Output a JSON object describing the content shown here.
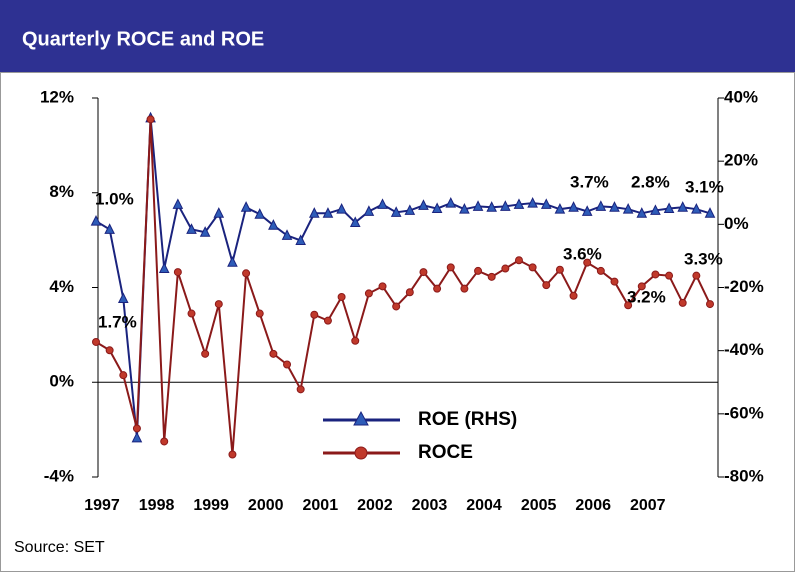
{
  "chart_data": {
    "type": "line",
    "title": "Quarterly ROCE and ROE",
    "source": "Source: SET",
    "categories": [
      "1997",
      null,
      null,
      null,
      "1998",
      null,
      null,
      null,
      "1999",
      null,
      null,
      null,
      "2000",
      null,
      null,
      null,
      "2001",
      null,
      null,
      null,
      "2002",
      null,
      null,
      null,
      "2003",
      null,
      null,
      null,
      "2004",
      null,
      null,
      null,
      "2005",
      null,
      null,
      null,
      "2006",
      null,
      null,
      null,
      "2007",
      null,
      null,
      null,
      null,
      null
    ],
    "ylim": [
      -4,
      12
    ],
    "yticks": [
      {
        "value": -4,
        "label": "-4%"
      },
      {
        "value": 0,
        "label": "0%"
      },
      {
        "value": 4,
        "label": "4%"
      },
      {
        "value": 8,
        "label": "8%"
      },
      {
        "value": 12,
        "label": "12%"
      }
    ],
    "y2lim": [
      -80,
      40
    ],
    "y2ticks": [
      {
        "value": -80,
        "label": "-80%"
      },
      {
        "value": -60,
        "label": "-60%"
      },
      {
        "value": -40,
        "label": "-40%"
      },
      {
        "value": -20,
        "label": "-20%"
      },
      {
        "value": 0,
        "label": "0%"
      },
      {
        "value": 20,
        "label": "20%"
      },
      {
        "value": 40,
        "label": "40%"
      }
    ],
    "series": [
      {
        "name": "ROE (RHS)",
        "color": "#1a237e",
        "marker": "triangle",
        "axis": "y2",
        "values": [
          1.0,
          -1.6,
          -23.5,
          -67.6,
          33.7,
          -14,
          6.3,
          -1.6,
          -2.5,
          3.5,
          -12,
          5.4,
          3.2,
          -0.3,
          -3.5,
          -5.1,
          3.5,
          3.5,
          4.8,
          0.6,
          4.1,
          6.3,
          3.8,
          4.4,
          6,
          5,
          6.7,
          4.8,
          5.7,
          5.4,
          5.7,
          6.3,
          6.7,
          6.3,
          4.8,
          5.4,
          4.1,
          5.7,
          5.4,
          4.8,
          3.5,
          4.4,
          5,
          5.4,
          4.8,
          3.5
        ]
      },
      {
        "name": "ROCE",
        "color": "#8b1a1a",
        "marker": "circle",
        "values": [
          1.7,
          1.35,
          0.3,
          -1.95,
          11.1,
          -2.5,
          4.65,
          2.9,
          1.2,
          3.3,
          -3.05,
          4.6,
          2.9,
          1.2,
          0.75,
          -0.3,
          2.85,
          2.6,
          3.6,
          1.75,
          3.75,
          4.05,
          3.2,
          3.8,
          4.65,
          3.95,
          4.85,
          3.95,
          4.7,
          4.45,
          4.8,
          5.15,
          4.85,
          4.1,
          4.75,
          3.65,
          5.05,
          4.7,
          4.25,
          3.25,
          4.05,
          4.55,
          4.5,
          3.35,
          4.5,
          3.3
        ]
      }
    ],
    "annotations": [
      "1.0%",
      "1.7%",
      "3.7%",
      "2.8%",
      "3.1%",
      "3.6%",
      "3.2%",
      "3.3%"
    ]
  }
}
